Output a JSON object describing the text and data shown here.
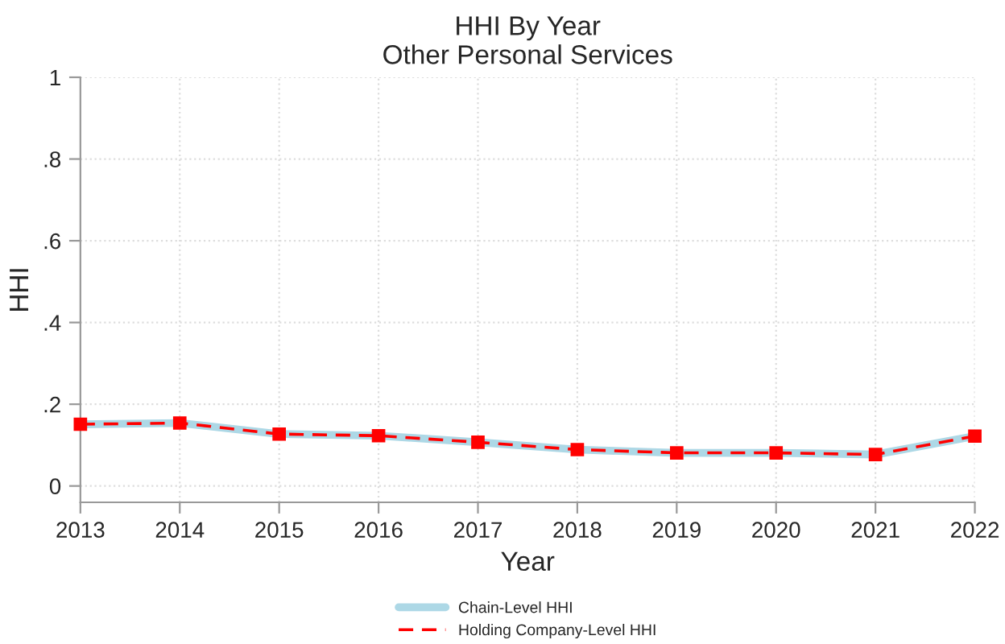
{
  "chart_data": {
    "type": "line",
    "title": "HHI By Year\nOther Personal Services",
    "xlabel": "Year",
    "ylabel": "HHI",
    "x": [
      2013,
      2014,
      2015,
      2016,
      2017,
      2018,
      2019,
      2020,
      2021,
      2022
    ],
    "series": [
      {
        "name": "Chain-Level HHI",
        "color": "#add8e6",
        "line_style": "solid",
        "marker": "none",
        "values": [
          0.151,
          0.154,
          0.127,
          0.123,
          0.107,
          0.089,
          0.081,
          0.081,
          0.077,
          0.122
        ]
      },
      {
        "name": "Holding Company-Level HHI",
        "color": "#ff0000",
        "line_style": "dashed",
        "marker": "square",
        "values": [
          0.151,
          0.154,
          0.127,
          0.123,
          0.107,
          0.089,
          0.081,
          0.081,
          0.077,
          0.122
        ]
      }
    ],
    "xlim": [
      2013,
      2022
    ],
    "xticks": [
      2013,
      2014,
      2015,
      2016,
      2017,
      2018,
      2019,
      2020,
      2021,
      2022
    ],
    "ylim": [
      -0.04,
      1
    ],
    "yticks": [
      {
        "value": 0,
        "label": "0"
      },
      {
        "value": 0.2,
        "label": ".2"
      },
      {
        "value": 0.4,
        "label": ".4"
      },
      {
        "value": 0.6,
        "label": ".6"
      },
      {
        "value": 0.8,
        "label": ".8"
      },
      {
        "value": 1,
        "label": "1"
      }
    ],
    "grid": true,
    "legend": "bottom"
  }
}
